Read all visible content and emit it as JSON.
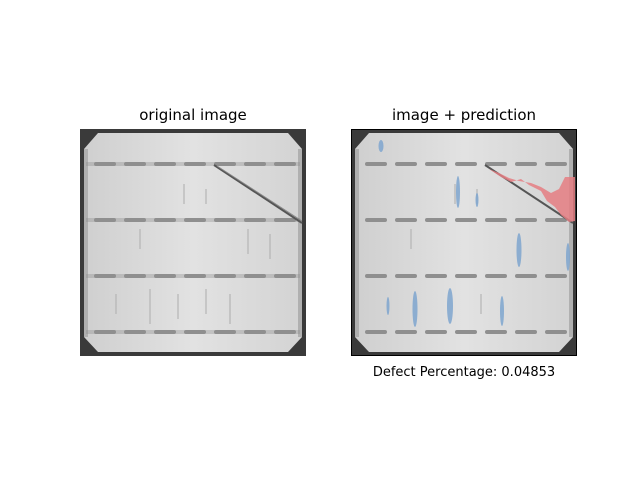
{
  "figure": {
    "left_title": "original image",
    "right_title": "image + prediction",
    "caption": "Defect Percentage: 0.04853"
  },
  "colors": {
    "background": "#ffffff",
    "cell_gray": "#d6d6d6",
    "corner_dark": "#3c3c3c",
    "busbar": "#8d8d8d",
    "crack": "#555555",
    "overlay_blue": "#7fa6cf",
    "overlay_red": "#e57e82"
  }
}
